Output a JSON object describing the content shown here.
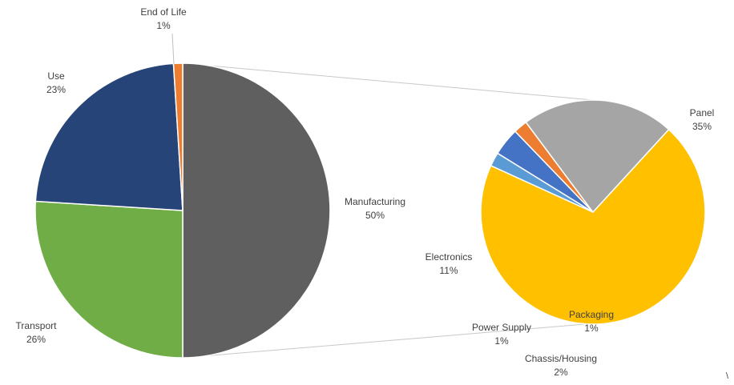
{
  "chart_data": {
    "type": "pie",
    "subtype": "pie-of-pie",
    "main": {
      "slices": [
        {
          "name": "Manufacturing",
          "value": 50,
          "label": "50%",
          "color": "#5f5f5f"
        },
        {
          "name": "Transport",
          "value": 26,
          "label": "26%",
          "color": "#70ad47"
        },
        {
          "name": "Use",
          "value": 23,
          "label": "23%",
          "color": "#264478"
        },
        {
          "name": "End of Life",
          "value": 1,
          "label": "1%",
          "color": "#ed7d31"
        }
      ]
    },
    "secondary": {
      "breakdown_of": "Manufacturing",
      "slices": [
        {
          "name": "Panel",
          "value": 35,
          "label": "35%",
          "color": "#ffc000"
        },
        {
          "name": "Packaging",
          "value": 1,
          "label": "1%",
          "color": "#5b9bd5"
        },
        {
          "name": "Chassis/Housing",
          "value": 2,
          "label": "2%",
          "color": "#4472c4"
        },
        {
          "name": "Power Supply",
          "value": 1,
          "label": "1%",
          "color": "#ed7d31"
        },
        {
          "name": "Electronics",
          "value": 11,
          "label": "11%",
          "color": "#a5a5a5"
        }
      ]
    },
    "connector_color": "#c8c8c8",
    "legend": "none",
    "title": ""
  },
  "stray_mark": "\\"
}
